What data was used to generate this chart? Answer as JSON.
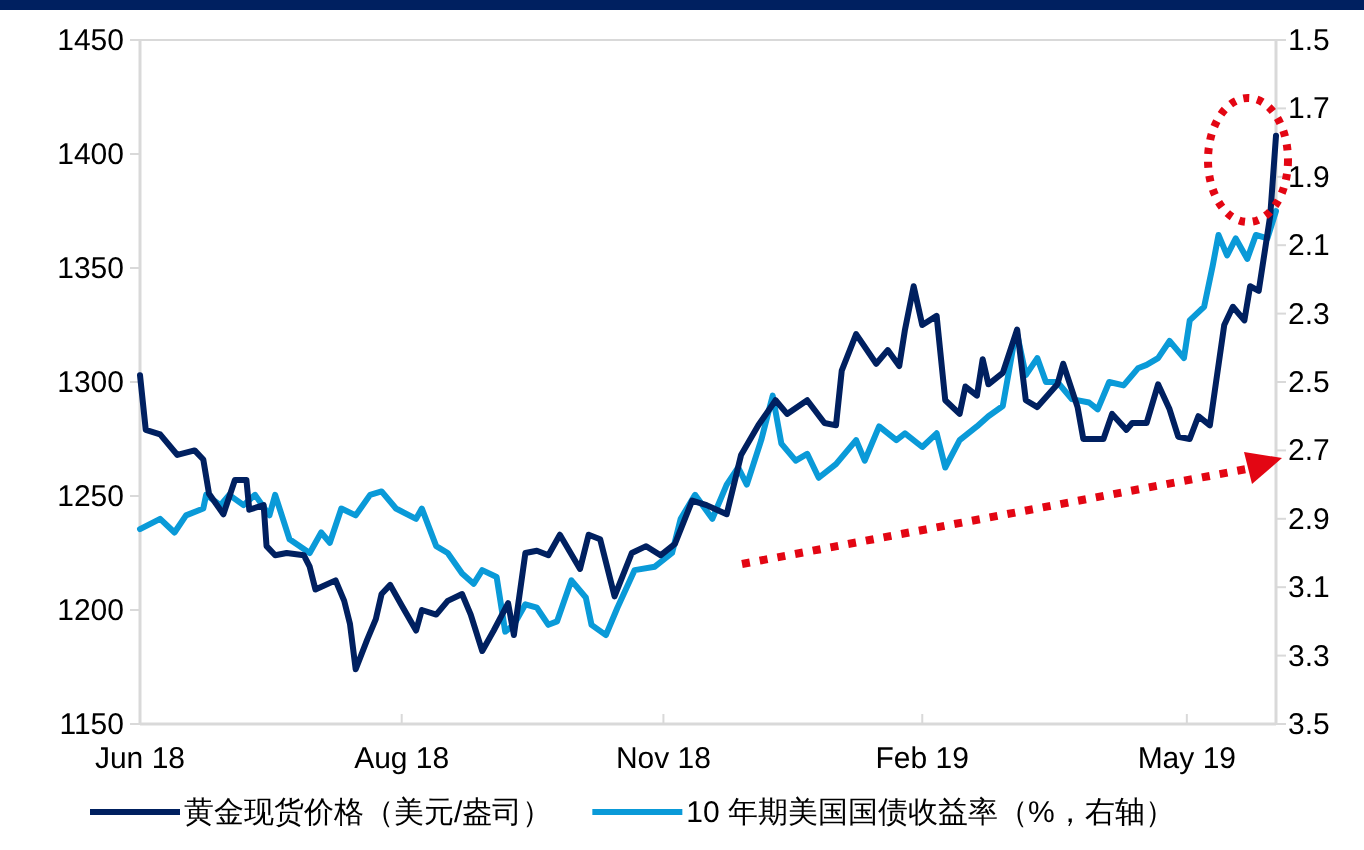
{
  "chart_data": {
    "type": "line",
    "legend": "bottom",
    "xlim": [
      "2018-06-01",
      "2019-07-01"
    ],
    "xticks": [
      {
        "value": "2018-06-01",
        "label": "Jun 18"
      },
      {
        "value": "2018-08-31",
        "label": "Aug 18"
      },
      {
        "value": "2018-11-30",
        "label": "Nov 18"
      },
      {
        "value": "2019-02-28",
        "label": "Feb 19"
      },
      {
        "value": "2019-05-31",
        "label": "May 19"
      }
    ],
    "ylim": [
      1150,
      1450
    ],
    "yticks": [
      1150,
      1200,
      1250,
      1300,
      1350,
      1400,
      1450
    ],
    "y2lim": [
      3.5,
      1.5
    ],
    "y2ticks": [
      1.5,
      1.7,
      1.9,
      2.1,
      2.3,
      2.5,
      2.7,
      2.9,
      3.1,
      3.3,
      3.5
    ],
    "series": [
      {
        "name": "黄金现货价格（美元/盎司）",
        "color": "#002060",
        "x": [
          "2018-06-01",
          "2018-06-03",
          "2018-06-08",
          "2018-06-14",
          "2018-06-20",
          "2018-06-23",
          "2018-06-25",
          "2018-06-30",
          "2018-07-04",
          "2018-07-08",
          "2018-07-09",
          "2018-07-14",
          "2018-07-15",
          "2018-07-18",
          "2018-07-22",
          "2018-07-28",
          "2018-07-30",
          "2018-08-01",
          "2018-08-08",
          "2018-08-11",
          "2018-08-13",
          "2018-08-15",
          "2018-08-19",
          "2018-08-22",
          "2018-08-24",
          "2018-08-27",
          "2018-08-31",
          "2018-09-05",
          "2018-09-07",
          "2018-09-12",
          "2018-09-16",
          "2018-09-21",
          "2018-09-24",
          "2018-09-28",
          "2018-10-02",
          "2018-10-07",
          "2018-10-09",
          "2018-10-13",
          "2018-10-17",
          "2018-10-21",
          "2018-10-25",
          "2018-11-01",
          "2018-11-04",
          "2018-11-08",
          "2018-11-13",
          "2018-11-19",
          "2018-11-24",
          "2018-11-29",
          "2018-12-04",
          "2018-12-10",
          "2018-12-15",
          "2018-12-22",
          "2018-12-27",
          "2019-01-02",
          "2019-01-08",
          "2019-01-12",
          "2019-01-19",
          "2019-01-25",
          "2019-01-29",
          "2019-01-31",
          "2019-02-05",
          "2019-02-12",
          "2019-02-16",
          "2019-02-20",
          "2019-02-22",
          "2019-02-25",
          "2019-02-28",
          "2019-03-05",
          "2019-03-08",
          "2019-03-13",
          "2019-03-15",
          "2019-03-19",
          "2019-03-21",
          "2019-03-23",
          "2019-03-28",
          "2019-04-02",
          "2019-04-05",
          "2019-04-09",
          "2019-04-16",
          "2019-04-18",
          "2019-04-23",
          "2019-04-25",
          "2019-05-02",
          "2019-05-05",
          "2019-05-10",
          "2019-05-12",
          "2019-05-17",
          "2019-05-21",
          "2019-05-25",
          "2019-05-28",
          "2019-06-01",
          "2019-06-04",
          "2019-06-08",
          "2019-06-13",
          "2019-06-16",
          "2019-06-20",
          "2019-06-22",
          "2019-06-25",
          "2019-06-29",
          "2019-07-01"
        ],
        "values": [
          1303,
          1279,
          1277,
          1268,
          1270,
          1266,
          1251,
          1242,
          1257,
          1257,
          1244,
          1246,
          1228,
          1224,
          1225,
          1224,
          1219,
          1209,
          1213,
          1204,
          1194,
          1174,
          1187,
          1196,
          1207,
          1211,
          1202,
          1191,
          1200,
          1198,
          1204,
          1207,
          1198,
          1182,
          1191,
          1203,
          1189,
          1225,
          1226,
          1224,
          1233,
          1218,
          1233,
          1231,
          1206,
          1225,
          1228,
          1224,
          1229,
          1248,
          1246,
          1242,
          1268,
          1281,
          1292,
          1286,
          1292,
          1282,
          1281,
          1305,
          1321,
          1308,
          1314,
          1307,
          1323,
          1342,
          1325,
          1329,
          1292,
          1286,
          1298,
          1294,
          1310,
          1299,
          1304,
          1323,
          1292,
          1289,
          1299,
          1308,
          1289,
          1275,
          1275,
          1286,
          1279,
          1282,
          1282,
          1299,
          1288,
          1276,
          1275,
          1285,
          1281,
          1325,
          1333,
          1327,
          1342,
          1340,
          1373,
          1408
        ]
      },
      {
        "name": "10 年期美国国债收益率（%，右轴）",
        "color": "#0a9ad8",
        "axis": "y2",
        "x": [
          "2018-06-01",
          "2018-06-08",
          "2018-06-13",
          "2018-06-17",
          "2018-06-23",
          "2018-06-24",
          "2018-06-29",
          "2018-07-02",
          "2018-07-07",
          "2018-07-11",
          "2018-07-16",
          "2018-07-18",
          "2018-07-23",
          "2018-07-30",
          "2018-08-03",
          "2018-08-06",
          "2018-08-10",
          "2018-08-15",
          "2018-08-20",
          "2018-08-24",
          "2018-08-29",
          "2018-09-05",
          "2018-09-07",
          "2018-09-12",
          "2018-09-16",
          "2018-09-21",
          "2018-09-25",
          "2018-09-28",
          "2018-10-03",
          "2018-10-06",
          "2018-10-09",
          "2018-10-13",
          "2018-10-17",
          "2018-10-21",
          "2018-10-24",
          "2018-10-29",
          "2018-11-03",
          "2018-11-05",
          "2018-11-10",
          "2018-11-14",
          "2018-11-20",
          "2018-11-27",
          "2018-12-03",
          "2018-12-06",
          "2018-12-11",
          "2018-12-17",
          "2018-12-22",
          "2018-12-26",
          "2018-12-29",
          "2019-01-03",
          "2019-01-07",
          "2019-01-10",
          "2019-01-15",
          "2019-01-19",
          "2019-01-23",
          "2019-01-29",
          "2019-02-05",
          "2019-02-08",
          "2019-02-13",
          "2019-02-19",
          "2019-02-22",
          "2019-02-28",
          "2019-03-05",
          "2019-03-08",
          "2019-03-13",
          "2019-03-19",
          "2019-03-23",
          "2019-03-28",
          "2019-04-01",
          "2019-04-02",
          "2019-04-05",
          "2019-04-09",
          "2019-04-12",
          "2019-04-16",
          "2019-04-21",
          "2019-04-27",
          "2019-04-30",
          "2019-05-04",
          "2019-05-09",
          "2019-05-14",
          "2019-05-17",
          "2019-05-21",
          "2019-05-25",
          "2019-05-30",
          "2019-06-01",
          "2019-06-06",
          "2019-06-09",
          "2019-06-11",
          "2019-06-14",
          "2019-06-17",
          "2019-06-21",
          "2019-06-24",
          "2019-06-28",
          "2019-07-01"
        ],
        "values": [
          2.93,
          2.9,
          2.94,
          2.89,
          2.87,
          2.83,
          2.86,
          2.83,
          2.86,
          2.83,
          2.89,
          2.83,
          2.96,
          3.0,
          2.94,
          2.97,
          2.87,
          2.89,
          2.83,
          2.82,
          2.87,
          2.9,
          2.87,
          2.98,
          3.0,
          3.06,
          3.09,
          3.05,
          3.07,
          3.23,
          3.21,
          3.15,
          3.16,
          3.21,
          3.2,
          3.08,
          3.13,
          3.21,
          3.24,
          3.16,
          3.05,
          3.04,
          3.0,
          2.9,
          2.83,
          2.9,
          2.8,
          2.75,
          2.8,
          2.67,
          2.54,
          2.68,
          2.73,
          2.71,
          2.78,
          2.74,
          2.67,
          2.73,
          2.63,
          2.67,
          2.65,
          2.69,
          2.65,
          2.75,
          2.67,
          2.63,
          2.6,
          2.57,
          2.38,
          2.36,
          2.48,
          2.43,
          2.5,
          2.5,
          2.55,
          2.56,
          2.58,
          2.5,
          2.51,
          2.46,
          2.45,
          2.43,
          2.38,
          2.43,
          2.32,
          2.28,
          2.16,
          2.07,
          2.13,
          2.08,
          2.14,
          2.07,
          2.08,
          2.0
        ]
      }
    ]
  }
}
